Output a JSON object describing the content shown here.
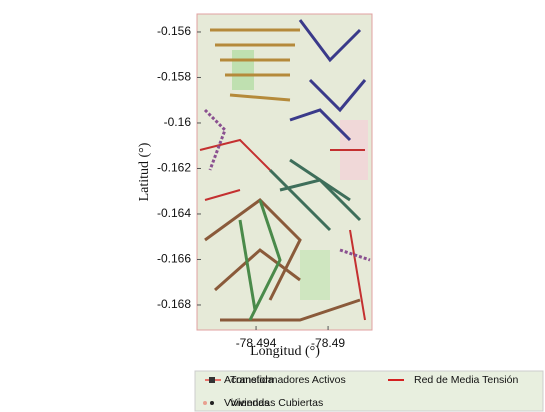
{
  "chart_data": {
    "type": "map",
    "xlabel": "Longitud (°)",
    "ylabel": "Latitud (°)",
    "xlim": [
      -78.49728,
      -78.48756
    ],
    "ylim": [
      -0.1691,
      -0.15521
    ],
    "xticks": [
      -78.494,
      -78.49
    ],
    "yticks": [
      -0.156,
      -0.158,
      -0.16,
      -0.162,
      -0.164,
      -0.166,
      -0.168
    ],
    "series": [
      {
        "name": "Acometida",
        "color": "#e8736b",
        "marker": "line"
      },
      {
        "name": "Transformadores Activos",
        "color": "#333333",
        "marker": "square"
      },
      {
        "name": "Red de Media Tensión",
        "color": "#d42020",
        "marker": "line"
      },
      {
        "name": "Viviendas",
        "color": "#e8a090",
        "marker": "dot"
      },
      {
        "name": "Viviendas Cubiertas",
        "color": "#222222",
        "marker": "dot"
      }
    ]
  }
}
